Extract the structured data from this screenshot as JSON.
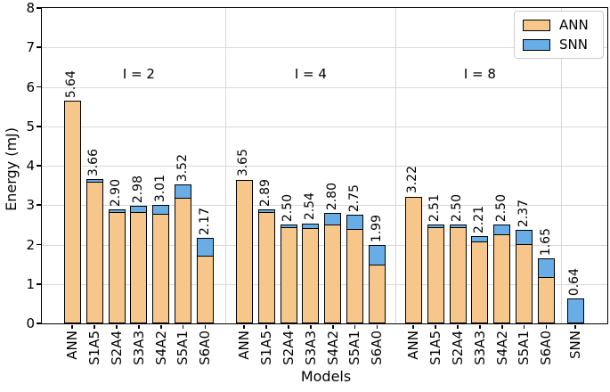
{
  "chart_data": {
    "type": "bar",
    "stacked": true,
    "title": "",
    "xlabel": "Models",
    "ylabel": "Energy (mJ)",
    "ylim": [
      0,
      8
    ],
    "yticks": [
      0,
      1,
      2,
      3,
      4,
      5,
      6,
      7,
      8
    ],
    "grid": "horizontal gridlines plus light vertical separators between groups",
    "legend_position": "upper right",
    "legend": [
      {
        "name": "ANN",
        "color": "#f6c68a"
      },
      {
        "name": "SNN",
        "color": "#68ade5"
      }
    ],
    "colors": {
      "ann_fill": "#f6c68a",
      "snn_fill": "#68ade5",
      "bar_edge": "#000000",
      "grid_line": "#d9d9d9",
      "spine": "#000000"
    },
    "groups": [
      {
        "label": "I = 2",
        "bars": [
          {
            "name": "ANN",
            "total": 5.64,
            "ann": 5.64,
            "snn": 0
          },
          {
            "name": "S1A5",
            "total": 3.66,
            "ann": 3.61,
            "snn": 0.05
          },
          {
            "name": "S2A4",
            "total": 2.9,
            "ann": 2.85,
            "snn": 0.05
          },
          {
            "name": "S3A3",
            "total": 2.98,
            "ann": 2.85,
            "snn": 0.13
          },
          {
            "name": "S4A2",
            "total": 3.01,
            "ann": 2.8,
            "snn": 0.21
          },
          {
            "name": "S5A1",
            "total": 3.52,
            "ann": 3.2,
            "snn": 0.32
          },
          {
            "name": "S6A0",
            "total": 2.17,
            "ann": 1.73,
            "snn": 0.44
          }
        ]
      },
      {
        "label": "I = 4",
        "bars": [
          {
            "name": "ANN",
            "total": 3.65,
            "ann": 3.65,
            "snn": 0
          },
          {
            "name": "S1A5",
            "total": 2.89,
            "ann": 2.84,
            "snn": 0.05
          },
          {
            "name": "S2A4",
            "total": 2.5,
            "ann": 2.45,
            "snn": 0.05
          },
          {
            "name": "S3A3",
            "total": 2.54,
            "ann": 2.44,
            "snn": 0.1
          },
          {
            "name": "S4A2",
            "total": 2.8,
            "ann": 2.52,
            "snn": 0.28
          },
          {
            "name": "S5A1",
            "total": 2.75,
            "ann": 2.4,
            "snn": 0.35
          },
          {
            "name": "S6A0",
            "total": 1.99,
            "ann": 1.51,
            "snn": 0.48
          }
        ]
      },
      {
        "label": "I = 8",
        "bars": [
          {
            "name": "ANN",
            "total": 3.22,
            "ann": 3.22,
            "snn": 0
          },
          {
            "name": "S1A5",
            "total": 2.51,
            "ann": 2.46,
            "snn": 0.05
          },
          {
            "name": "S2A4",
            "total": 2.5,
            "ann": 2.45,
            "snn": 0.05
          },
          {
            "name": "S3A3",
            "total": 2.21,
            "ann": 2.1,
            "snn": 0.11
          },
          {
            "name": "S4A2",
            "total": 2.5,
            "ann": 2.27,
            "snn": 0.23
          },
          {
            "name": "S5A1",
            "total": 2.37,
            "ann": 2.02,
            "snn": 0.35
          },
          {
            "name": "S6A0",
            "total": 1.65,
            "ann": 1.18,
            "snn": 0.47
          }
        ]
      },
      {
        "label": "",
        "bars": [
          {
            "name": "SNN",
            "total": 0.64,
            "ann": 0,
            "snn": 0.64
          }
        ]
      }
    ]
  }
}
